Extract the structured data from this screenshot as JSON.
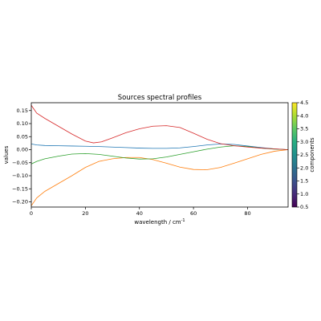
{
  "chart_data": {
    "type": "line",
    "title": "Sources spectral profiles",
    "xlabel": "wavelength / cm",
    "xlabel_sup": "-1",
    "ylabel": "values",
    "xlim": [
      0,
      95
    ],
    "ylim": [
      -0.22,
      0.18
    ],
    "xticks": [
      0,
      20,
      40,
      60,
      80
    ],
    "xtick_labels": [
      "0",
      "20",
      "40",
      "60",
      "80"
    ],
    "yticks": [
      -0.2,
      -0.15,
      -0.1,
      -0.05,
      0.0,
      0.05,
      0.1,
      0.15
    ],
    "ytick_labels": [
      "−0.20",
      "−0.15",
      "−0.10",
      "−0.05",
      "0.00",
      "0.05",
      "0.10",
      "0.15"
    ],
    "grid": false,
    "series": [
      {
        "color": "#1f77b4",
        "x": [
          0,
          2,
          5,
          10,
          15,
          20,
          25,
          30,
          35,
          40,
          45,
          50,
          55,
          60,
          65,
          70,
          75,
          80,
          85,
          90,
          95
        ],
        "y": [
          0.022,
          0.018,
          0.016,
          0.015,
          0.014,
          0.013,
          0.012,
          0.01,
          0.008,
          0.006,
          0.005,
          0.005,
          0.007,
          0.012,
          0.018,
          0.022,
          0.02,
          0.014,
          0.008,
          0.003,
          0.0
        ]
      },
      {
        "color": "#ff7f0e",
        "x": [
          0,
          2,
          5,
          10,
          15,
          20,
          25,
          30,
          35,
          40,
          45,
          50,
          55,
          60,
          65,
          70,
          75,
          80,
          85,
          90,
          95
        ],
        "y": [
          -0.215,
          -0.185,
          -0.16,
          -0.13,
          -0.1,
          -0.068,
          -0.045,
          -0.035,
          -0.03,
          -0.03,
          -0.038,
          -0.052,
          -0.067,
          -0.076,
          -0.077,
          -0.068,
          -0.052,
          -0.035,
          -0.018,
          -0.006,
          0.0
        ]
      },
      {
        "color": "#2ca02c",
        "x": [
          0,
          2,
          5,
          10,
          15,
          20,
          25,
          30,
          35,
          40,
          45,
          50,
          55,
          60,
          65,
          70,
          75,
          80,
          85,
          90,
          95
        ],
        "y": [
          -0.055,
          -0.045,
          -0.035,
          -0.025,
          -0.017,
          -0.015,
          -0.018,
          -0.025,
          -0.032,
          -0.036,
          -0.035,
          -0.028,
          -0.018,
          -0.008,
          0.002,
          0.01,
          0.015,
          0.012,
          0.006,
          0.002,
          0.0
        ]
      },
      {
        "color": "#d62728",
        "x": [
          0,
          2,
          5,
          10,
          15,
          20,
          23,
          26,
          30,
          35,
          40,
          45,
          50,
          55,
          60,
          65,
          70,
          75,
          80,
          85,
          90,
          95
        ],
        "y": [
          0.17,
          0.14,
          0.12,
          0.09,
          0.06,
          0.033,
          0.026,
          0.03,
          0.045,
          0.065,
          0.08,
          0.09,
          0.092,
          0.085,
          0.063,
          0.04,
          0.023,
          0.015,
          0.01,
          0.006,
          0.003,
          0.0
        ]
      }
    ],
    "colorbar": {
      "label": "components",
      "ticks": [
        0.5,
        1.0,
        1.5,
        2.0,
        2.5,
        3.0,
        3.5,
        4.0,
        4.5
      ],
      "tick_labels": [
        "0.5",
        "1.0",
        "1.5",
        "2.0",
        "2.5",
        "3.0",
        "3.5",
        "4.0",
        "4.5"
      ],
      "range": [
        0.5,
        4.5
      ],
      "colormap": [
        "#440154",
        "#472c7a",
        "#3b518b",
        "#2c718e",
        "#21908d",
        "#27ad81",
        "#5cc863",
        "#aadc32",
        "#fde725"
      ]
    }
  }
}
